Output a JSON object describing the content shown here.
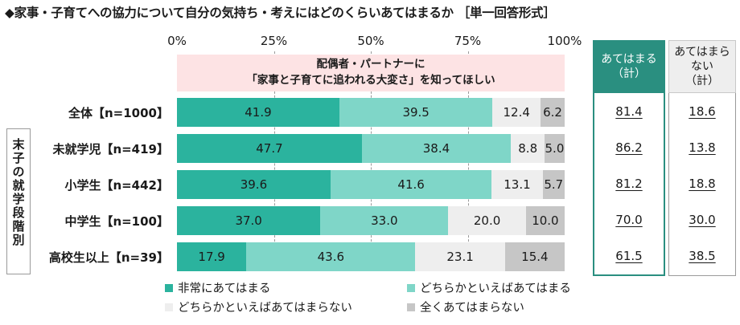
{
  "title": "◆家事・子育てへの協力について自分の気持ち・考えにはどのくらいあてはまるか ［単一回答形式］",
  "subject": {
    "line1": "配偶者・パートナーに",
    "line2": "「家事と子育てに追われる大変さ」を知ってほしい"
  },
  "group_label": "末子の就学段階別",
  "summary_headers": {
    "applies": "あてはまる（計）",
    "not_applies": "あてはまらない（計）"
  },
  "colors": {
    "s1": "#2bb39e",
    "s2": "#7fd6c8",
    "s3": "#eeeeee",
    "s4": "#c6c6c6",
    "subject_band": "#fde3e4",
    "summary_header": "#2a8f80"
  },
  "chart_data": {
    "type": "bar",
    "orientation": "horizontal",
    "stacked": true,
    "xlim": [
      0,
      100
    ],
    "x_ticks": [
      "0%",
      "25%",
      "50%",
      "75%",
      "100%"
    ],
    "categories": [
      "全体【n=1000】",
      "未就学児【n=419】",
      "小学生【n=442】",
      "中学生【n=100】",
      "高校生以上【n=39】"
    ],
    "series": [
      {
        "name": "非常にあてはまる",
        "values": [
          41.9,
          47.7,
          39.6,
          37.0,
          17.9
        ],
        "labels": [
          "41.9",
          "47.7",
          "39.6",
          "37.0",
          "17.9"
        ]
      },
      {
        "name": "どちらかといえばあてはまる",
        "values": [
          39.5,
          38.4,
          41.6,
          33.0,
          43.6
        ],
        "labels": [
          "39.5",
          "38.4",
          "41.6",
          "33.0",
          "43.6"
        ]
      },
      {
        "name": "どちらかといえばあてはまらない",
        "values": [
          12.4,
          8.8,
          13.1,
          20.0,
          23.1
        ],
        "labels": [
          "12.4",
          "8.8",
          "13.1",
          "20.0",
          "23.1"
        ]
      },
      {
        "name": "全くあてはまらない",
        "values": [
          6.2,
          5.0,
          5.7,
          10.0,
          15.4
        ],
        "labels": [
          "6.2",
          "5.0",
          "5.7",
          "10.0",
          "15.4"
        ]
      }
    ],
    "totals": {
      "applies": [
        "81.4",
        "86.2",
        "81.2",
        "70.0",
        "61.5"
      ],
      "not_applies": [
        "18.6",
        "13.8",
        "18.8",
        "30.0",
        "38.5"
      ]
    },
    "grid": true,
    "legend": "bottom"
  }
}
